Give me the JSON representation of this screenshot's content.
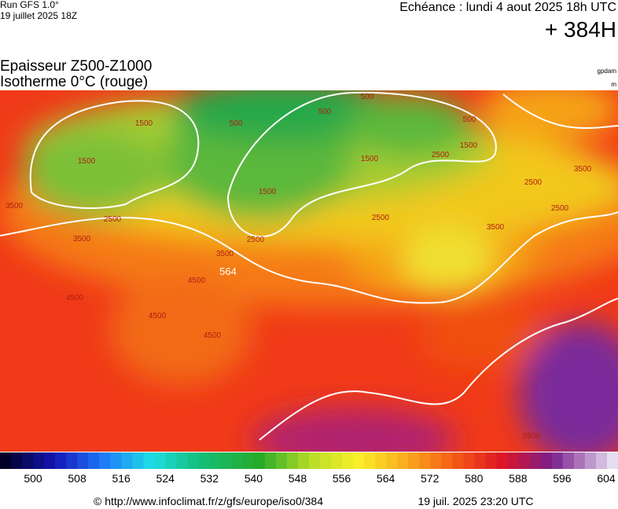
{
  "header": {
    "run": "Run GFS 1.0°",
    "run_date": "19 juillet 2025 18Z",
    "valid": "Echéance : lundi 4 aout 2025 18h UTC",
    "lead": "+ 384H",
    "title": "Epaisseur Z500-Z1000",
    "subtitle": "Isotherme 0°C (rouge)",
    "unit_thickness": "gpdam",
    "unit_iso": "m"
  },
  "map": {
    "contour_labels": [
      "500",
      "500",
      "500",
      "500",
      "1500",
      "1500",
      "1500",
      "1500",
      "1500",
      "2500",
      "2500",
      "2500",
      "2500",
      "2500",
      "2500",
      "3500",
      "3500",
      "3500",
      "3500",
      "3500",
      "4500",
      "4500",
      "4500",
      "4500",
      "564",
      "5500"
    ]
  },
  "colorbar": {
    "labels": [
      500,
      508,
      516,
      524,
      532,
      540,
      548,
      556,
      564,
      572,
      580,
      588,
      596,
      604
    ]
  },
  "footer": {
    "source": "© http://www.infoclimat.fr/z/gfs/europe/iso0/384",
    "generated": "19 juil. 2025 23:20 UTC"
  }
}
